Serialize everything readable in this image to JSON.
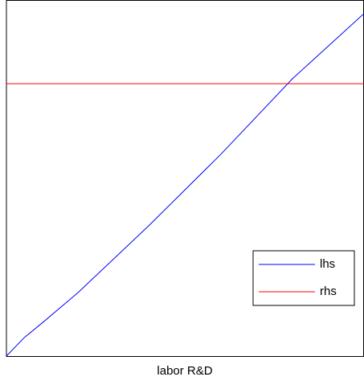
{
  "chart_data": {
    "type": "line",
    "xlabel": "labor R&D",
    "x": [
      0,
      0.05,
      0.1,
      0.2,
      0.4,
      0.6,
      0.8,
      1.0
    ],
    "series": [
      {
        "name": "lhs",
        "color": "#0000ff",
        "values": [
          0,
          0.052,
          0.093,
          0.178,
          0.368,
          0.567,
          0.779,
          0.962
        ]
      },
      {
        "name": "rhs",
        "color": "#ff0000",
        "values": [
          0.765,
          0.765,
          0.765,
          0.765,
          0.765,
          0.765,
          0.765,
          0.765
        ]
      }
    ],
    "xlim": [
      0,
      1
    ],
    "ylim": [
      0,
      1
    ],
    "legend": "lower right"
  }
}
